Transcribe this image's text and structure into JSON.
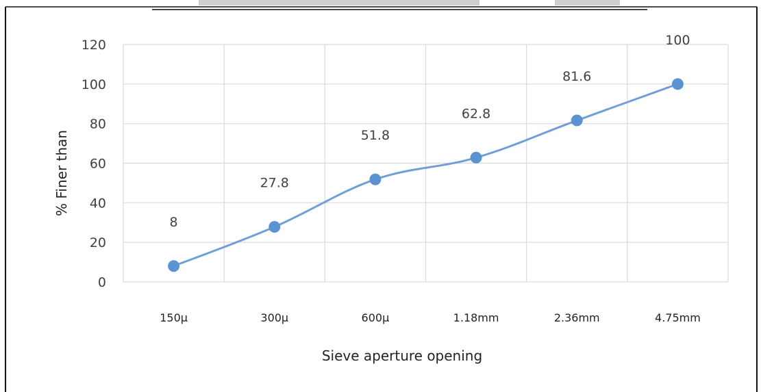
{
  "colors": {
    "line": "#6f9fd4",
    "marker": "#5b93d2",
    "grid": "#d9d9d9",
    "axis_text": "#404040",
    "frame": "#111111",
    "background": "#ffffff"
  },
  "chart_data": {
    "type": "line",
    "title": "",
    "xlabel": "Sieve aperture opening",
    "ylabel": "% Finer than",
    "categories": [
      "150µ",
      "300µ",
      "600µ",
      "1.18mm",
      "2.36mm",
      "4.75mm"
    ],
    "series": [
      {
        "values": [
          8,
          27.8,
          51.8,
          62.8,
          81.6,
          100
        ]
      }
    ],
    "data_labels": [
      "8",
      "27.8",
      "51.8",
      "62.8",
      "81.6",
      "100"
    ],
    "ylim": [
      0,
      120
    ],
    "yticks": [
      0,
      20,
      40,
      60,
      80,
      100,
      120
    ],
    "grid": true,
    "smooth": true,
    "legend": "none"
  }
}
